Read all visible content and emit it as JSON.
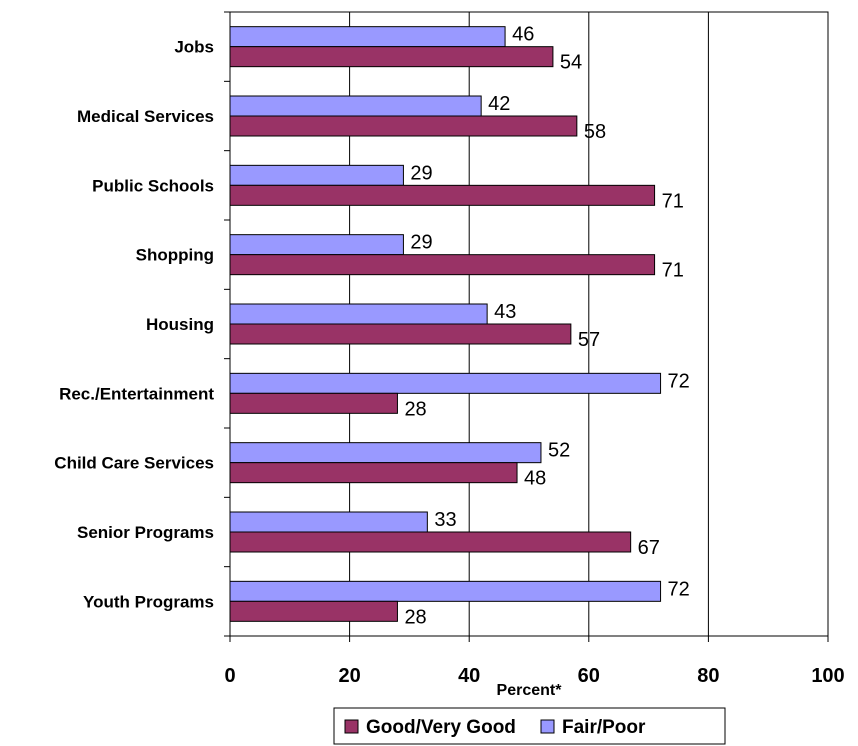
{
  "chart_data": {
    "type": "bar",
    "orientation": "horizontal",
    "categories": [
      "Jobs",
      "Medical Services",
      "Public Schools",
      "Shopping",
      "Housing",
      "Rec./Entertainment",
      "Child Care Services",
      "Senior Programs",
      "Youth Programs"
    ],
    "series": [
      {
        "name": "Fair/Poor",
        "color": "#9999ff",
        "values": [
          46,
          42,
          29,
          29,
          43,
          72,
          52,
          33,
          72
        ]
      },
      {
        "name": "Good/Very Good",
        "color": "#993366",
        "values": [
          54,
          58,
          71,
          71,
          57,
          28,
          48,
          67,
          28
        ]
      }
    ],
    "legend_order": [
      "Good/Very Good",
      "Fair/Poor"
    ],
    "xlabel": "Percent*",
    "xlim": [
      0,
      100
    ],
    "xticks": [
      0,
      20,
      40,
      60,
      80,
      100
    ],
    "grid": "vertical",
    "legend_placement": "bottom"
  }
}
